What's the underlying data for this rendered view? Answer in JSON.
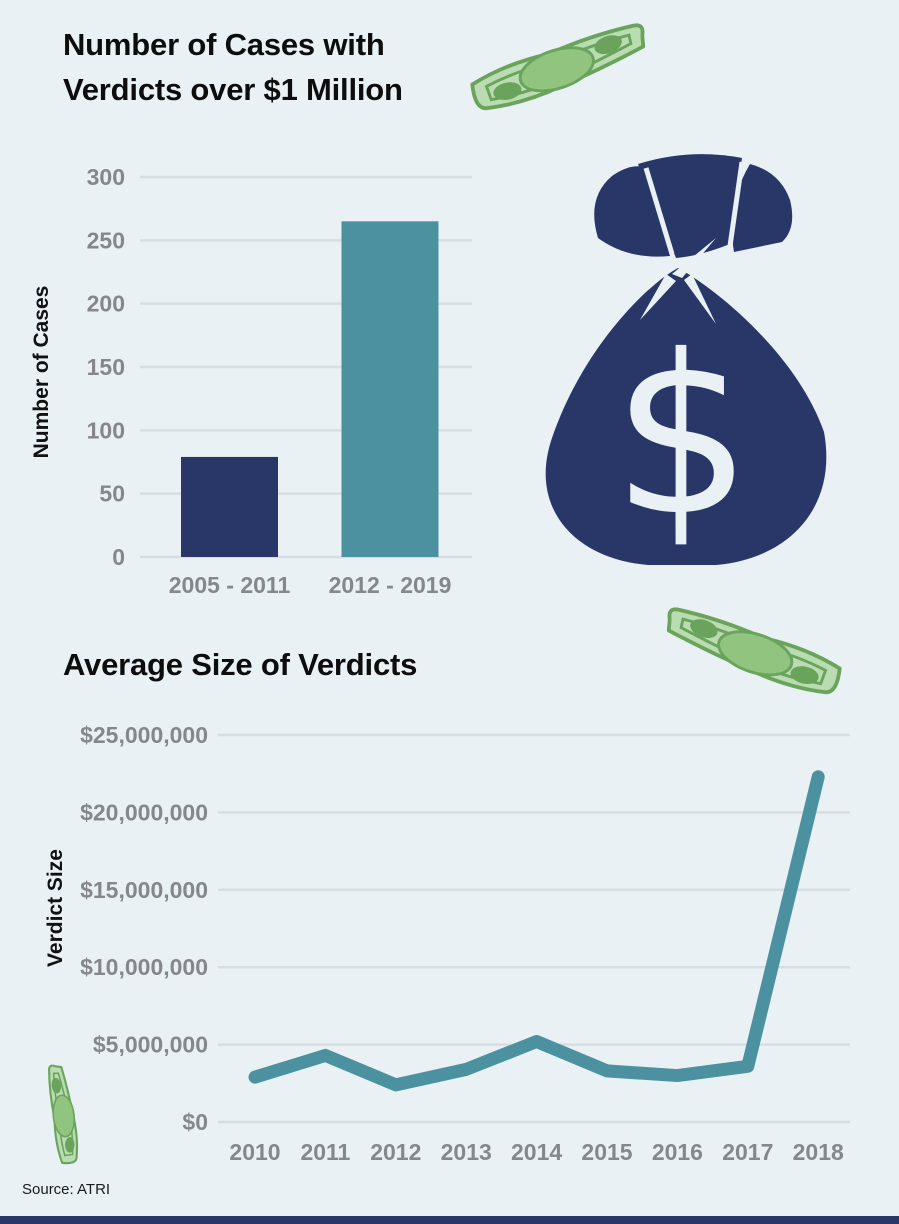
{
  "page": {
    "background": "#e9f1f5",
    "source": "Source: ATRI",
    "bottom_bar_color": "#293768"
  },
  "colors": {
    "navy": "#293768",
    "teal": "#4b91a0",
    "axis_text": "#85878c",
    "gridline": "#d7dee2",
    "title_text": "#0d0d0d",
    "bill_light": "#b9dcb0",
    "bill_mid": "#90c47f",
    "bill_dark": "#69a35c"
  },
  "icons": {
    "money_bag": "money-bag-icon",
    "dollar_bill": "dollar-bill-icon",
    "dollar_glyph": "$"
  },
  "chart_data": [
    {
      "type": "bar",
      "title": "Number of Cases with Verdicts over $1 Million",
      "title_lines": [
        "Number of Cases with",
        "Verdicts over $1 Million"
      ],
      "ylabel": "Number of Cases",
      "xlabel": "",
      "categories": [
        "2005 - 2011",
        "2012 - 2019"
      ],
      "values": [
        79,
        265
      ],
      "bar_colors": [
        "#293768",
        "#4b91a0"
      ],
      "yticks": [
        0,
        50,
        100,
        150,
        200,
        250,
        300
      ],
      "ylim": [
        0,
        300
      ],
      "grid": true,
      "legend": "none"
    },
    {
      "type": "line",
      "title": "Average Size of Verdicts",
      "ylabel": "Verdict Size",
      "xlabel": "",
      "categories": [
        "2010",
        "2011",
        "2012",
        "2013",
        "2014",
        "2015",
        "2016",
        "2017",
        "2018"
      ],
      "values": [
        2900000,
        4300000,
        2400000,
        3400000,
        5200000,
        3300000,
        3000000,
        3600000,
        22300000
      ],
      "line_color": "#4b91a0",
      "ytick_values": [
        0,
        5000000,
        10000000,
        15000000,
        20000000,
        25000000
      ],
      "ytick_labels": [
        "$0",
        "$5,000,000",
        "$10,000,000",
        "$15,000,000",
        "$20,000,000",
        "$25,000,000"
      ],
      "ylim": [
        0,
        25000000
      ],
      "grid": true,
      "legend": "none"
    }
  ]
}
